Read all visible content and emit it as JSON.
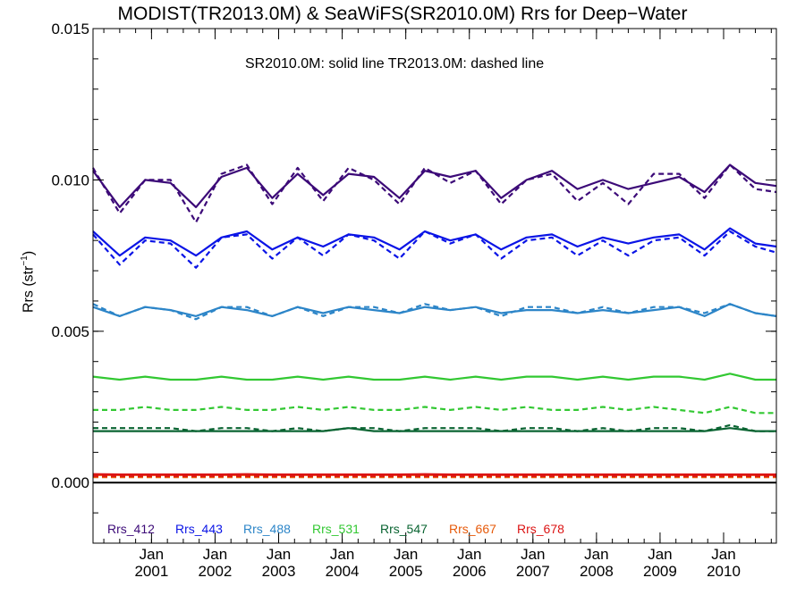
{
  "chart_data": {
    "type": "line",
    "title": "MODIST(TR2013.0M) & SeaWiFS(SR2010.0M)  Rrs for Deep−Water",
    "annotation": "SR2010.0M: solid line   TR2013.0M: dashed line",
    "ylabel_main": "Rrs (str",
    "ylabel_sup": "−1",
    "ylabel_close": ")",
    "ylim": [
      -0.002,
      0.015
    ],
    "xlim": [
      2000.08,
      2010.83
    ],
    "yticks": [
      {
        "value": 0.0,
        "label": "0.000"
      },
      {
        "value": 0.005,
        "label": "0.005"
      },
      {
        "value": 0.01,
        "label": "0.010"
      },
      {
        "value": 0.015,
        "label": "0.015"
      }
    ],
    "xticks": [
      {
        "value": 2001.0,
        "line1": "Jan",
        "line2": "2001"
      },
      {
        "value": 2002.0,
        "line1": "Jan",
        "line2": "2002"
      },
      {
        "value": 2003.0,
        "line1": "Jan",
        "line2": "2003"
      },
      {
        "value": 2004.0,
        "line1": "Jan",
        "line2": "2004"
      },
      {
        "value": 2005.0,
        "line1": "Jan",
        "line2": "2005"
      },
      {
        "value": 2006.0,
        "line1": "Jan",
        "line2": "2006"
      },
      {
        "value": 2007.0,
        "line1": "Jan",
        "line2": "2007"
      },
      {
        "value": 2008.0,
        "line1": "Jan",
        "line2": "2008"
      },
      {
        "value": 2009.0,
        "line1": "Jan",
        "line2": "2009"
      },
      {
        "value": 2010.0,
        "line1": "Jan",
        "line2": "2010"
      }
    ],
    "reference_line": {
      "y": 0.0,
      "color": "#000000"
    },
    "x": [
      2000.08,
      2000.5,
      2000.9,
      2001.3,
      2001.7,
      2002.1,
      2002.5,
      2002.9,
      2003.3,
      2003.7,
      2004.1,
      2004.5,
      2004.9,
      2005.3,
      2005.7,
      2006.1,
      2006.5,
      2006.9,
      2007.3,
      2007.7,
      2008.1,
      2008.5,
      2008.9,
      2009.3,
      2009.7,
      2010.1,
      2010.5,
      2010.83
    ],
    "series": [
      {
        "name": "Rrs_412",
        "color": "#3c0a78",
        "style": "solid",
        "values": [
          0.0103,
          0.0091,
          0.01,
          0.0099,
          0.0091,
          0.0101,
          0.0104,
          0.0094,
          0.0102,
          0.0095,
          0.0102,
          0.0101,
          0.0094,
          0.0103,
          0.0101,
          0.0103,
          0.0094,
          0.01,
          0.0103,
          0.0097,
          0.01,
          0.0097,
          0.0099,
          0.0101,
          0.0096,
          0.0105,
          0.0099,
          0.0098
        ]
      },
      {
        "name": "Rrs_412",
        "color": "#3c0a78",
        "style": "dashed",
        "values": [
          0.0104,
          0.0089,
          0.01,
          0.01,
          0.0086,
          0.0102,
          0.0105,
          0.0092,
          0.0104,
          0.0093,
          0.0104,
          0.01,
          0.0092,
          0.0104,
          0.0099,
          0.0103,
          0.0092,
          0.01,
          0.0102,
          0.0093,
          0.0099,
          0.0092,
          0.0102,
          0.0102,
          0.0094,
          0.0105,
          0.0097,
          0.0096
        ]
      },
      {
        "name": "Rrs_443",
        "color": "#0a14e6",
        "style": "solid",
        "values": [
          0.0083,
          0.0075,
          0.0081,
          0.008,
          0.0075,
          0.0081,
          0.0083,
          0.0077,
          0.0081,
          0.0078,
          0.0082,
          0.0081,
          0.0077,
          0.0083,
          0.008,
          0.0082,
          0.0077,
          0.0081,
          0.0082,
          0.0078,
          0.0081,
          0.0079,
          0.0081,
          0.0082,
          0.0077,
          0.0084,
          0.0079,
          0.0078
        ]
      },
      {
        "name": "Rrs_443",
        "color": "#0a14e6",
        "style": "dashed",
        "values": [
          0.0082,
          0.0072,
          0.008,
          0.0079,
          0.0071,
          0.0081,
          0.0082,
          0.0074,
          0.0081,
          0.0075,
          0.0082,
          0.008,
          0.0074,
          0.0083,
          0.0079,
          0.0082,
          0.0074,
          0.008,
          0.0081,
          0.0075,
          0.008,
          0.0075,
          0.008,
          0.0081,
          0.0075,
          0.0083,
          0.0078,
          0.0076
        ]
      },
      {
        "name": "Rrs_488",
        "color": "#2c85c8",
        "style": "solid",
        "values": [
          0.0058,
          0.0055,
          0.0058,
          0.0057,
          0.0055,
          0.0058,
          0.0057,
          0.0055,
          0.0058,
          0.0056,
          0.0058,
          0.0057,
          0.0056,
          0.0058,
          0.0057,
          0.0058,
          0.0056,
          0.0057,
          0.0057,
          0.0056,
          0.0057,
          0.0056,
          0.0057,
          0.0058,
          0.0055,
          0.0059,
          0.0056,
          0.0055
        ]
      },
      {
        "name": "Rrs_488",
        "color": "#2c85c8",
        "style": "dashed",
        "values": [
          0.0059,
          0.0055,
          0.0058,
          0.0057,
          0.0054,
          0.0058,
          0.0058,
          0.0055,
          0.0058,
          0.0055,
          0.0058,
          0.0058,
          0.0056,
          0.0059,
          0.0057,
          0.0058,
          0.0055,
          0.0058,
          0.0058,
          0.0056,
          0.0058,
          0.0056,
          0.0058,
          0.0058,
          0.0056,
          0.0059,
          0.0056,
          0.0055
        ]
      },
      {
        "name": "Rrs_531",
        "color": "#32c832",
        "style": "solid",
        "values": [
          0.0035,
          0.0034,
          0.0035,
          0.0034,
          0.0034,
          0.0035,
          0.0034,
          0.0034,
          0.0035,
          0.0034,
          0.0035,
          0.0034,
          0.0034,
          0.0035,
          0.0034,
          0.0035,
          0.0034,
          0.0035,
          0.0035,
          0.0034,
          0.0035,
          0.0034,
          0.0035,
          0.0035,
          0.0034,
          0.0036,
          0.0034,
          0.0034
        ]
      },
      {
        "name": "Rrs_531",
        "color": "#32c832",
        "style": "dashed",
        "values": [
          0.0024,
          0.0024,
          0.0025,
          0.0024,
          0.0024,
          0.0025,
          0.0024,
          0.0024,
          0.0025,
          0.0024,
          0.0025,
          0.0024,
          0.0024,
          0.0025,
          0.0024,
          0.0025,
          0.0024,
          0.0025,
          0.0024,
          0.0024,
          0.0025,
          0.0024,
          0.0025,
          0.0024,
          0.0023,
          0.0025,
          0.0023,
          0.0023
        ]
      },
      {
        "name": "Rrs_547",
        "color": "#0a6432",
        "style": "solid",
        "values": [
          0.0017,
          0.0017,
          0.0017,
          0.0017,
          0.0017,
          0.0017,
          0.0017,
          0.0017,
          0.0017,
          0.0017,
          0.0018,
          0.0017,
          0.0017,
          0.0017,
          0.0017,
          0.0017,
          0.0017,
          0.0017,
          0.0017,
          0.0017,
          0.0017,
          0.0017,
          0.0017,
          0.0017,
          0.0017,
          0.0018,
          0.0017,
          0.0017
        ]
      },
      {
        "name": "Rrs_547",
        "color": "#0a6432",
        "style": "dashed",
        "values": [
          0.0018,
          0.0018,
          0.0018,
          0.0018,
          0.0017,
          0.0018,
          0.0018,
          0.0017,
          0.0018,
          0.0017,
          0.0018,
          0.0018,
          0.0017,
          0.0018,
          0.0018,
          0.0018,
          0.0017,
          0.0018,
          0.0018,
          0.0017,
          0.0018,
          0.0017,
          0.0018,
          0.0018,
          0.0017,
          0.0019,
          0.0017,
          0.0017
        ]
      },
      {
        "name": "Rrs_667",
        "color": "#e65a0a",
        "style": "solid",
        "values": [
          0.00025,
          0.00025,
          0.00025,
          0.00025,
          0.00025,
          0.00025,
          0.00025,
          0.00025,
          0.00025,
          0.00025,
          0.00025,
          0.00025,
          0.00025,
          0.00025,
          0.00025,
          0.00025,
          0.00025,
          0.00025,
          0.00025,
          0.00025,
          0.00025,
          0.00025,
          0.00025,
          0.00025,
          0.00025,
          0.00025,
          0.00025,
          0.00025
        ]
      },
      {
        "name": "Rrs_667",
        "color": "#e65a0a",
        "style": "dashed",
        "values": [
          0.00018,
          0.00018,
          0.00018,
          0.00018,
          0.00018,
          0.00018,
          0.00018,
          0.00018,
          0.00018,
          0.00018,
          0.00018,
          0.00018,
          0.00018,
          0.00018,
          0.00018,
          0.00018,
          0.00018,
          0.00018,
          0.00018,
          0.00018,
          0.00018,
          0.00018,
          0.00018,
          0.00018,
          0.00018,
          0.00018,
          0.00018,
          0.00018
        ]
      },
      {
        "name": "Rrs_678",
        "color": "#dc1414",
        "style": "solid",
        "values": [
          0.00028,
          0.00027,
          0.00027,
          0.00027,
          0.00027,
          0.00027,
          0.00028,
          0.00027,
          0.00027,
          0.00027,
          0.00027,
          0.00027,
          0.00027,
          0.00028,
          0.00027,
          0.00027,
          0.00027,
          0.00027,
          0.00027,
          0.00027,
          0.00027,
          0.00027,
          0.00027,
          0.00027,
          0.00027,
          0.00027,
          0.00027,
          0.00027
        ]
      },
      {
        "name": "Rrs_678",
        "color": "#dc1414",
        "style": "dashed",
        "values": [
          0.00022,
          0.00022,
          0.00022,
          0.00022,
          0.00022,
          0.00022,
          0.00022,
          0.00022,
          0.00022,
          0.00022,
          0.00022,
          0.00022,
          0.00022,
          0.00022,
          0.00022,
          0.00022,
          0.00022,
          0.00022,
          0.00022,
          0.00022,
          0.00022,
          0.00022,
          0.00022,
          0.00022,
          0.00022,
          0.00022,
          0.00022,
          0.00022
        ]
      }
    ],
    "legend": [
      {
        "label": "Rrs_412",
        "color": "#3c0a78"
      },
      {
        "label": "Rrs_443",
        "color": "#0a14e6"
      },
      {
        "label": "Rrs_488",
        "color": "#2c85c8"
      },
      {
        "label": "Rrs_531",
        "color": "#32c832"
      },
      {
        "label": "Rrs_547",
        "color": "#0a6432"
      },
      {
        "label": "Rrs_667",
        "color": "#e65a0a"
      },
      {
        "label": "Rrs_678",
        "color": "#dc1414"
      }
    ],
    "legend_position": "bottom-left",
    "grid": false
  }
}
